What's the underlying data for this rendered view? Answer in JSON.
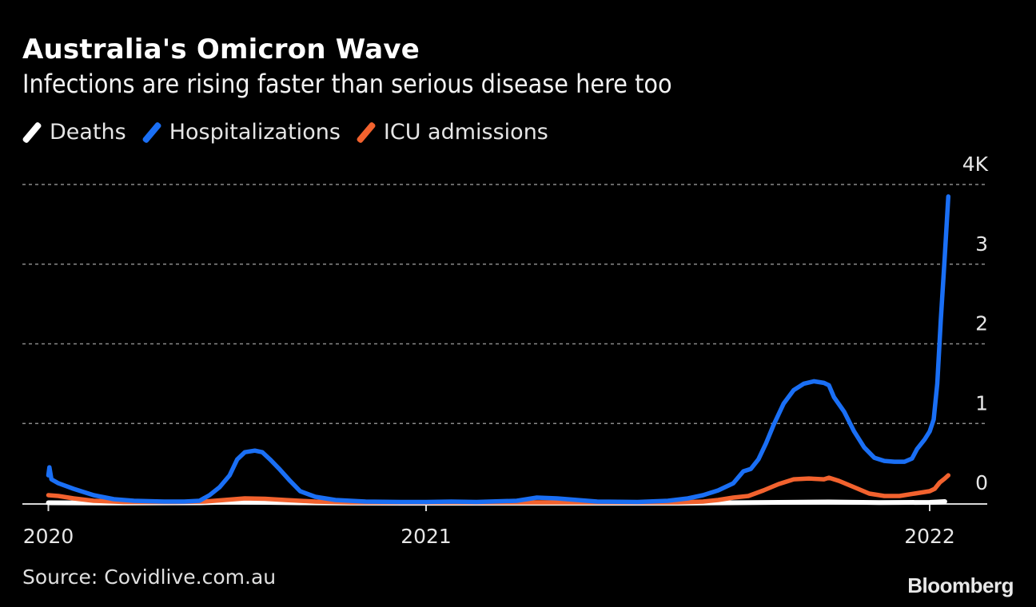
{
  "header": {
    "title": "Australia's Omicron Wave",
    "subtitle": "Infections are rising faster than serious disease here too"
  },
  "legend": [
    {
      "label": "Deaths",
      "color": "#ffffff"
    },
    {
      "label": "Hospitalizations",
      "color": "#1a6ff5"
    },
    {
      "label": "ICU admissions",
      "color": "#f2622e"
    }
  ],
  "footer": {
    "source": "Source: Covidlive.com.au",
    "brand": "Bloomberg"
  },
  "chart_data": {
    "type": "line",
    "title": "Australia's Omicron Wave",
    "subtitle": "Infections are rising faster than serious disease here too",
    "xlabel": "",
    "ylabel": "",
    "x_units": "fractional year",
    "xlim": [
      2020.25,
      2022.04
    ],
    "ylim": [
      0,
      4000
    ],
    "grid": true,
    "legend_position": "top-left",
    "y_ticks": [
      {
        "value": 0,
        "label": "0"
      },
      {
        "value": 1000,
        "label": "1"
      },
      {
        "value": 2000,
        "label": "2"
      },
      {
        "value": 3000,
        "label": "3"
      },
      {
        "value": 4000,
        "label": "4K"
      }
    ],
    "x_ticks": [
      {
        "value": 2020.25,
        "label": "2020"
      },
      {
        "value": 2021.0,
        "label": "2021"
      },
      {
        "value": 2022.0,
        "label": "2022"
      }
    ],
    "series": [
      {
        "name": "Hospitalizations",
        "color": "#1a6ff5",
        "points": [
          [
            2020.25,
            350
          ],
          [
            2020.252,
            450
          ],
          [
            2020.256,
            300
          ],
          [
            2020.27,
            250
          ],
          [
            2020.3,
            180
          ],
          [
            2020.34,
            100
          ],
          [
            2020.38,
            50
          ],
          [
            2020.42,
            30
          ],
          [
            2020.48,
            20
          ],
          [
            2020.52,
            20
          ],
          [
            2020.55,
            30
          ],
          [
            2020.57,
            100
          ],
          [
            2020.59,
            200
          ],
          [
            2020.61,
            350
          ],
          [
            2020.625,
            550
          ],
          [
            2020.64,
            640
          ],
          [
            2020.66,
            660
          ],
          [
            2020.675,
            640
          ],
          [
            2020.69,
            550
          ],
          [
            2020.71,
            420
          ],
          [
            2020.73,
            280
          ],
          [
            2020.75,
            150
          ],
          [
            2020.78,
            80
          ],
          [
            2020.82,
            40
          ],
          [
            2020.88,
            20
          ],
          [
            2020.95,
            15
          ],
          [
            2021.0,
            15
          ],
          [
            2021.05,
            20
          ],
          [
            2021.1,
            15
          ],
          [
            2021.18,
            30
          ],
          [
            2021.22,
            70
          ],
          [
            2021.26,
            60
          ],
          [
            2021.3,
            40
          ],
          [
            2021.34,
            20
          ],
          [
            2021.42,
            15
          ],
          [
            2021.48,
            30
          ],
          [
            2021.52,
            60
          ],
          [
            2021.55,
            100
          ],
          [
            2021.58,
            160
          ],
          [
            2021.61,
            250
          ],
          [
            2021.63,
            400
          ],
          [
            2021.645,
            430
          ],
          [
            2021.66,
            550
          ],
          [
            2021.675,
            750
          ],
          [
            2021.69,
            980
          ],
          [
            2021.71,
            1250
          ],
          [
            2021.73,
            1420
          ],
          [
            2021.75,
            1500
          ],
          [
            2021.77,
            1530
          ],
          [
            2021.79,
            1510
          ],
          [
            2021.8,
            1480
          ],
          [
            2021.81,
            1330
          ],
          [
            2021.83,
            1150
          ],
          [
            2021.85,
            900
          ],
          [
            2021.87,
            700
          ],
          [
            2021.89,
            570
          ],
          [
            2021.91,
            530
          ],
          [
            2021.93,
            520
          ],
          [
            2021.95,
            520
          ],
          [
            2021.965,
            560
          ],
          [
            2021.975,
            680
          ],
          [
            2021.99,
            800
          ],
          [
            2022.0,
            900
          ],
          [
            2022.008,
            1050
          ],
          [
            2022.015,
            1500
          ],
          [
            2022.022,
            2300
          ],
          [
            2022.03,
            3100
          ],
          [
            2022.037,
            3850
          ]
        ]
      },
      {
        "name": "ICU admissions",
        "color": "#f2622e",
        "points": [
          [
            2020.25,
            100
          ],
          [
            2020.27,
            90
          ],
          [
            2020.3,
            60
          ],
          [
            2020.34,
            30
          ],
          [
            2020.4,
            15
          ],
          [
            2020.5,
            15
          ],
          [
            2020.56,
            20
          ],
          [
            2020.6,
            40
          ],
          [
            2020.64,
            60
          ],
          [
            2020.68,
            55
          ],
          [
            2020.72,
            40
          ],
          [
            2020.78,
            20
          ],
          [
            2020.85,
            10
          ],
          [
            2021.0,
            10
          ],
          [
            2021.3,
            10
          ],
          [
            2021.5,
            10
          ],
          [
            2021.55,
            20
          ],
          [
            2021.58,
            40
          ],
          [
            2021.61,
            70
          ],
          [
            2021.64,
            90
          ],
          [
            2021.67,
            160
          ],
          [
            2021.7,
            240
          ],
          [
            2021.73,
            300
          ],
          [
            2021.76,
            310
          ],
          [
            2021.79,
            300
          ],
          [
            2021.8,
            320
          ],
          [
            2021.82,
            280
          ],
          [
            2021.85,
            200
          ],
          [
            2021.88,
            120
          ],
          [
            2021.91,
            90
          ],
          [
            2021.94,
            90
          ],
          [
            2021.97,
            120
          ],
          [
            2021.99,
            140
          ],
          [
            2022.0,
            150
          ],
          [
            2022.01,
            180
          ],
          [
            2022.02,
            260
          ],
          [
            2022.03,
            310
          ],
          [
            2022.037,
            350
          ]
        ]
      },
      {
        "name": "Deaths",
        "color": "#ffffff",
        "points": [
          [
            2020.25,
            5
          ],
          [
            2020.4,
            2
          ],
          [
            2020.55,
            5
          ],
          [
            2020.62,
            15
          ],
          [
            2020.68,
            10
          ],
          [
            2020.75,
            5
          ],
          [
            2020.85,
            1
          ],
          [
            2021.0,
            0
          ],
          [
            2021.5,
            0
          ],
          [
            2021.6,
            5
          ],
          [
            2021.7,
            10
          ],
          [
            2021.8,
            15
          ],
          [
            2021.9,
            8
          ],
          [
            2022.0,
            10
          ],
          [
            2022.03,
            20
          ]
        ]
      }
    ]
  }
}
